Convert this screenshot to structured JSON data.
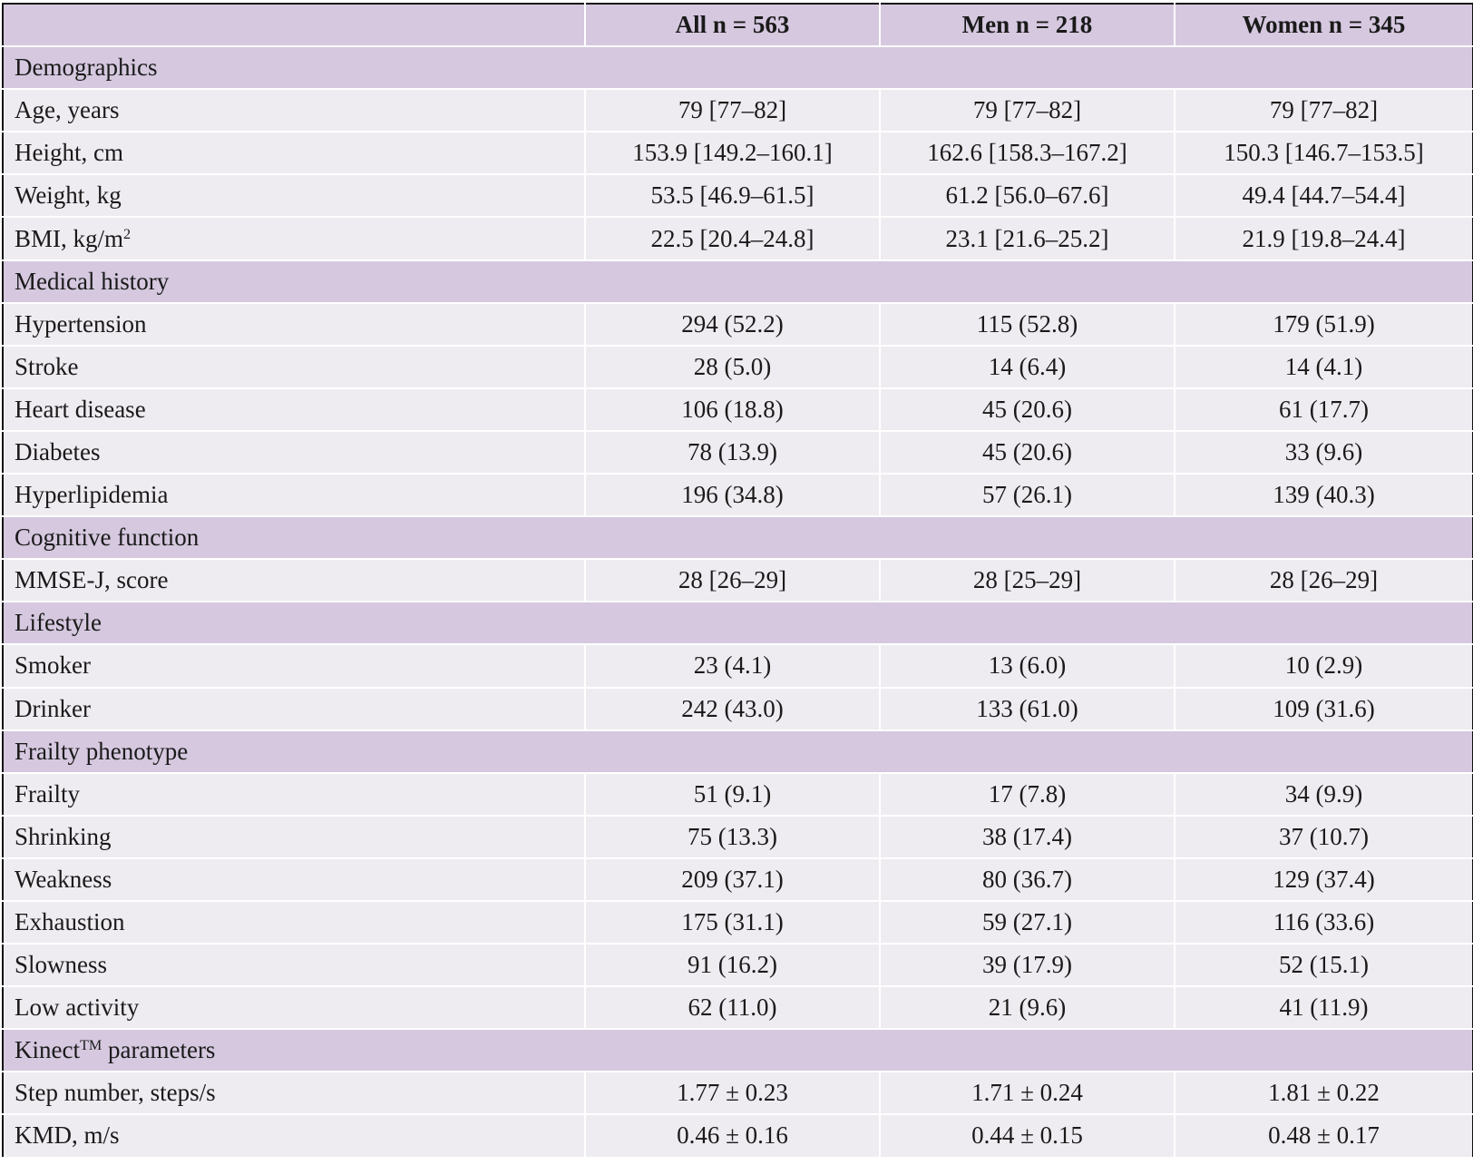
{
  "header": {
    "col_all": "All n = 563",
    "col_men": "Men n = 218",
    "col_women": "Women n = 345"
  },
  "sections": {
    "demographics": "Demographics",
    "medical_history": "Medical history",
    "cognitive_function": "Cognitive function",
    "lifestyle": "Lifestyle",
    "frailty_phenotype": "Frailty phenotype",
    "kinect_prefix": "Kinect",
    "kinect_tm": "TM",
    "kinect_suffix": " parameters"
  },
  "rows": {
    "age": {
      "label": "Age, years",
      "all": "79 [77–82]",
      "men": "79 [77–82]",
      "women": "79 [77–82]"
    },
    "height": {
      "label": "Height, cm",
      "all": "153.9 [149.2–160.1]",
      "men": "162.6 [158.3–167.2]",
      "women": "150.3 [146.7–153.5]"
    },
    "weight": {
      "label": "Weight, kg",
      "all": "53.5 [46.9–61.5]",
      "men": "61.2 [56.0–67.6]",
      "women": "49.4 [44.7–54.4]"
    },
    "bmi": {
      "label_prefix": "BMI, kg/m",
      "label_sup": "2",
      "all": "22.5 [20.4–24.8]",
      "men": "23.1 [21.6–25.2]",
      "women": "21.9 [19.8–24.4]"
    },
    "hypertension": {
      "label": "Hypertension",
      "all": "294 (52.2)",
      "men": "115 (52.8)",
      "women": "179 (51.9)"
    },
    "stroke": {
      "label": "Stroke",
      "all": "28 (5.0)",
      "men": "14 (6.4)",
      "women": "14 (4.1)"
    },
    "heart_disease": {
      "label": "Heart disease",
      "all": "106 (18.8)",
      "men": "45 (20.6)",
      "women": "61 (17.7)"
    },
    "diabetes": {
      "label": "Diabetes",
      "all": "78 (13.9)",
      "men": "45 (20.6)",
      "women": "33 (9.6)"
    },
    "hyperlipidemia": {
      "label": "Hyperlipidemia",
      "all": "196 (34.8)",
      "men": "57 (26.1)",
      "women": "139 (40.3)"
    },
    "mmse": {
      "label": "MMSE-J, score",
      "all": "28 [26–29]",
      "men": "28 [25–29]",
      "women": "28 [26–29]"
    },
    "smoker": {
      "label": "Smoker",
      "all": "23 (4.1)",
      "men": "13 (6.0)",
      "women": "10 (2.9)"
    },
    "drinker": {
      "label": "Drinker",
      "all": "242 (43.0)",
      "men": "133 (61.0)",
      "women": "109 (31.6)"
    },
    "frailty": {
      "label": "Frailty",
      "all": "51 (9.1)",
      "men": "17 (7.8)",
      "women": "34 (9.9)"
    },
    "shrinking": {
      "label": "Shrinking",
      "all": "75 (13.3)",
      "men": "38 (17.4)",
      "women": "37 (10.7)"
    },
    "weakness": {
      "label": "Weakness",
      "all": "209 (37.1)",
      "men": "80 (36.7)",
      "women": "129 (37.4)"
    },
    "exhaustion": {
      "label": "Exhaustion",
      "all": "175 (31.1)",
      "men": "59 (27.1)",
      "women": "116 (33.6)"
    },
    "slowness": {
      "label": "Slowness",
      "all": "91 (16.2)",
      "men": "39 (17.9)",
      "women": "52 (15.1)"
    },
    "low_activity": {
      "label": "Low activity",
      "all": "62 (11.0)",
      "men": "21 (9.6)",
      "women": "41 (11.9)"
    },
    "step_number": {
      "label": "Step number, steps/s",
      "all": "1.77 ± 0.23",
      "men": "1.71 ± 0.24",
      "women": "1.81 ± 0.22"
    },
    "kmd": {
      "label": "KMD, m/s",
      "all": "0.46 ± 0.16",
      "men": "0.44 ± 0.15",
      "women": "0.48 ± 0.17"
    }
  },
  "colors": {
    "header_bg": "#d5c8df",
    "row_bg": "#efecf1",
    "divider": "#ffffff",
    "outer_border": "#111111"
  }
}
